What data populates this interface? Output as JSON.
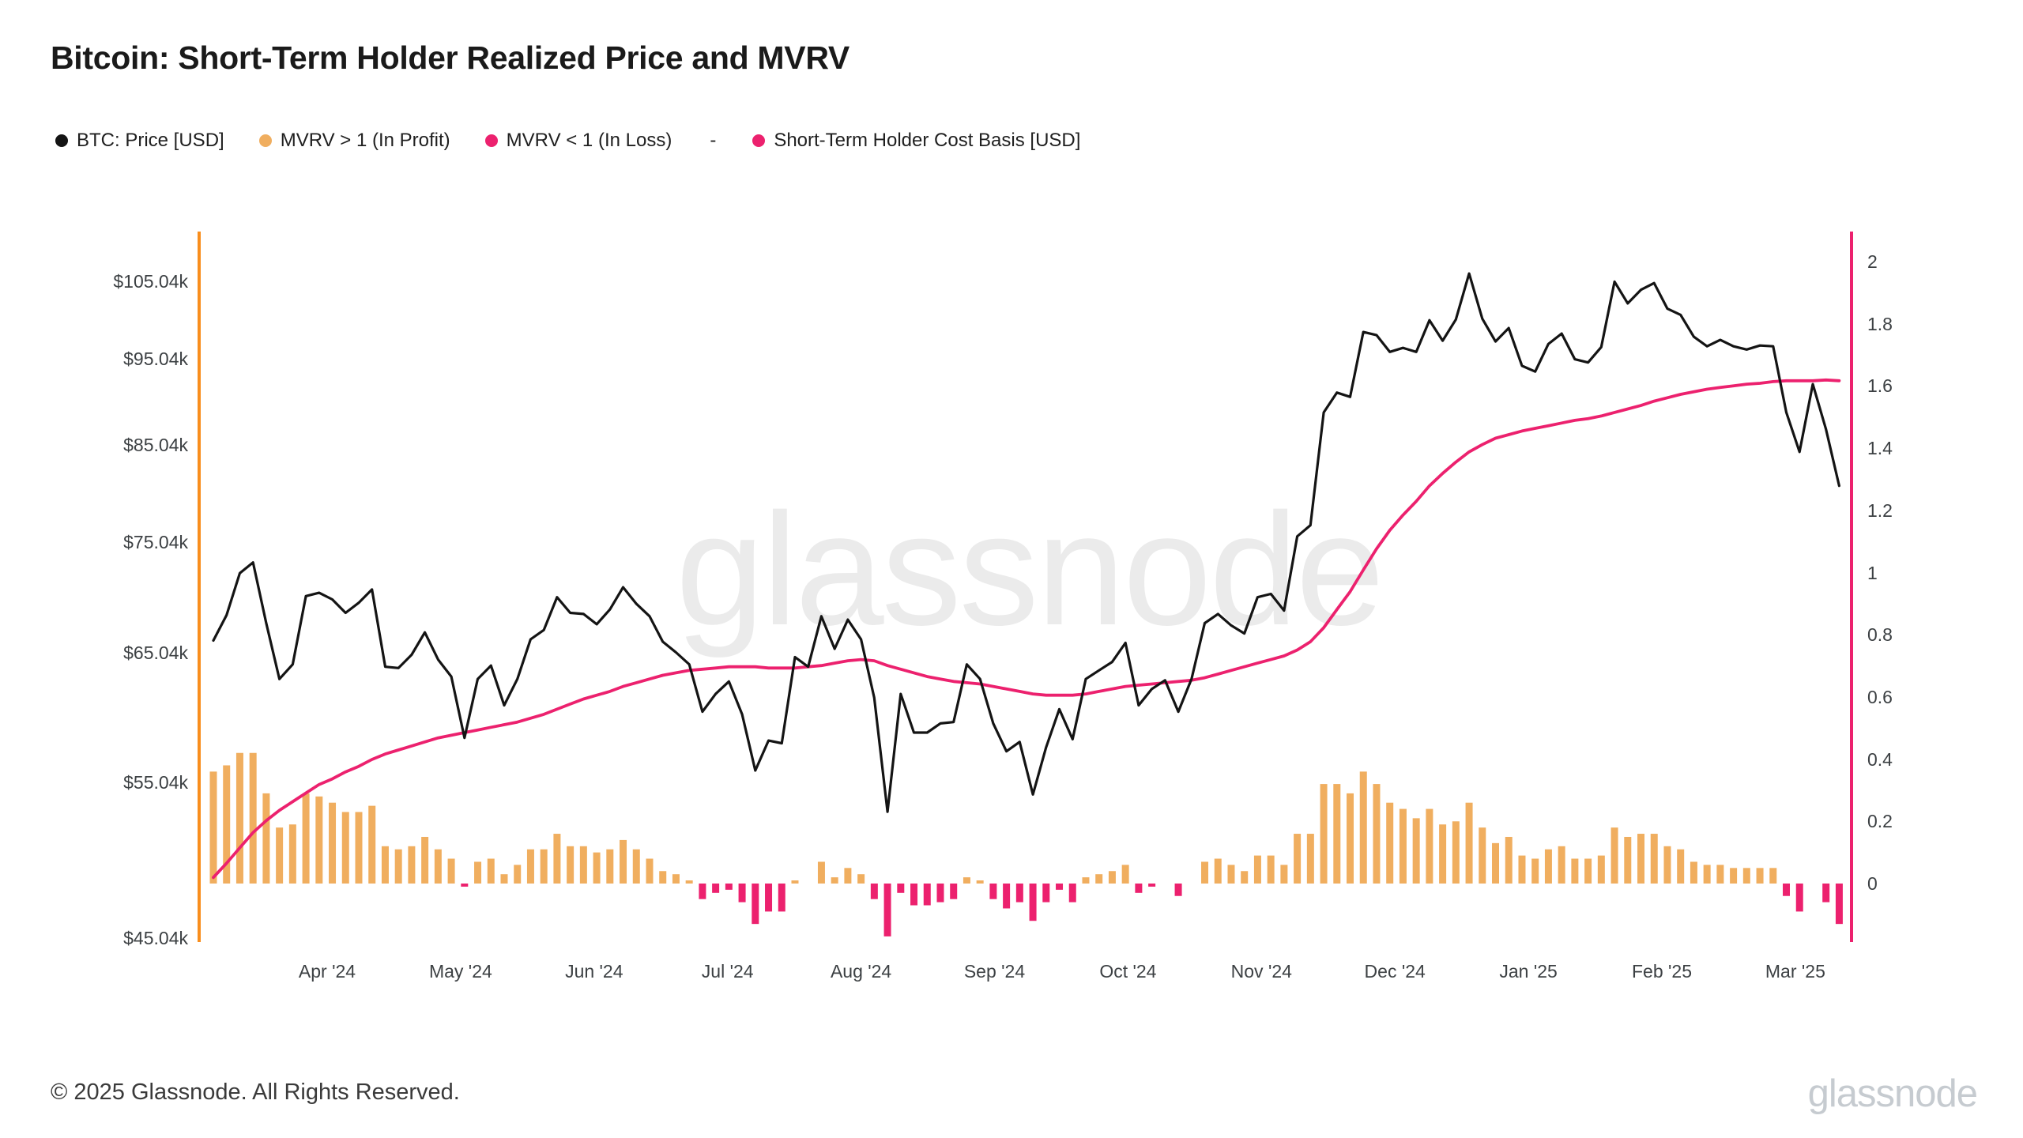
{
  "title": "Bitcoin: Short-Term Holder Realized Price and MVRV",
  "watermark": "glassnode",
  "footer": {
    "copyright": "© 2025 Glassnode. All Rights Reserved.",
    "brand": "glassnode"
  },
  "legend": [
    {
      "label": "BTC: Price [USD]",
      "color": "#141414"
    },
    {
      "label": "MVRV > 1 (In Profit)",
      "color": "#f0ae5f"
    },
    {
      "label": "MVRV < 1 (In Loss)",
      "color": "#ec216e"
    },
    {
      "label": "-",
      "color": null
    },
    {
      "label": "Short-Term Holder Cost Basis [USD]",
      "color": "#ec216e"
    }
  ],
  "chart_data": {
    "type": "line+bar",
    "title": "Bitcoin: Short-Term Holder Realized Price and MVRV",
    "x_start": "2024-03-05",
    "x_step_days": 3,
    "x_tick_labels": [
      "Apr '24",
      "May '24",
      "Jun '24",
      "Jul '24",
      "Aug '24",
      "Sep '24",
      "Oct '24",
      "Nov '24",
      "Dec '24",
      "Jan '25",
      "Feb '25",
      "Mar '25"
    ],
    "y_left": {
      "unit": "USD",
      "scale": "log",
      "tick_labels": [
        "$105.04k",
        "$95.04k",
        "$85.04k",
        "$75.04k",
        "$65.04k",
        "$55.04k",
        "$45.04k"
      ],
      "tick_values_k": [
        105.04,
        95.04,
        85.04,
        75.04,
        65.04,
        55.04,
        45.04
      ],
      "axis_color": "#f98e1d"
    },
    "y_right": {
      "unit": "ratio",
      "scale": "linear",
      "tick_labels": [
        "2",
        "1.8",
        "1.6",
        "1.4",
        "1.2",
        "1",
        "0.8",
        "0.6",
        "0.4",
        "0.2",
        "0"
      ],
      "tick_values": [
        2,
        1.8,
        1.6,
        1.4,
        1.2,
        1,
        0.8,
        0.6,
        0.4,
        0.2,
        0
      ],
      "axis_color": "#ec216e"
    },
    "series": [
      {
        "name": "BTC: Price [USD]",
        "type": "line",
        "axis": "left",
        "unit": "kUSD",
        "color": "#141414",
        "values": [
          66.1,
          68.3,
          72.1,
          73.1,
          67.6,
          62.9,
          64.1,
          70.0,
          70.3,
          69.7,
          68.5,
          69.4,
          70.6,
          63.9,
          63.8,
          64.9,
          66.8,
          64.5,
          63.1,
          58.3,
          62.9,
          64.0,
          60.8,
          62.9,
          66.2,
          67.0,
          69.9,
          68.5,
          68.4,
          67.5,
          68.8,
          70.8,
          69.3,
          68.2,
          66.0,
          65.1,
          64.1,
          60.3,
          61.7,
          62.7,
          60.1,
          55.9,
          58.1,
          57.9,
          64.7,
          63.9,
          68.2,
          65.4,
          67.9,
          66.2,
          61.4,
          53.0,
          61.7,
          58.7,
          58.7,
          59.4,
          59.5,
          64.1,
          62.9,
          59.4,
          57.3,
          58.0,
          54.2,
          57.6,
          60.5,
          58.2,
          62.9,
          63.6,
          64.3,
          65.9,
          60.8,
          62.1,
          62.8,
          60.3,
          62.9,
          67.6,
          68.4,
          67.4,
          66.7,
          69.9,
          70.2,
          68.7,
          75.6,
          76.7,
          88.7,
          91.0,
          90.5,
          98.4,
          98.0,
          95.9,
          96.4,
          95.9,
          99.9,
          97.3,
          100.0,
          106.1,
          100.1,
          97.2,
          98.9,
          94.2,
          93.5,
          96.9,
          98.2,
          95.0,
          94.6,
          96.5,
          105.0,
          102.1,
          103.9,
          104.8,
          101.4,
          100.6,
          97.8,
          96.6,
          97.4,
          96.6,
          96.2,
          96.7,
          96.6,
          88.7,
          84.3,
          92.0,
          86.8,
          80.7
        ]
      },
      {
        "name": "Short-Term Holder Cost Basis [USD]",
        "type": "line",
        "axis": "left",
        "unit": "kUSD",
        "color": "#ec216e",
        "values": [
          48.7,
          49.6,
          50.6,
          51.6,
          52.4,
          53.1,
          53.7,
          54.3,
          54.9,
          55.3,
          55.8,
          56.2,
          56.7,
          57.1,
          57.4,
          57.7,
          58.0,
          58.3,
          58.5,
          58.7,
          58.9,
          59.1,
          59.3,
          59.5,
          59.8,
          60.1,
          60.5,
          60.9,
          61.3,
          61.6,
          61.9,
          62.3,
          62.6,
          62.9,
          63.2,
          63.4,
          63.6,
          63.7,
          63.8,
          63.9,
          63.9,
          63.9,
          63.8,
          63.8,
          63.8,
          63.9,
          64.0,
          64.2,
          64.4,
          64.5,
          64.4,
          64.0,
          63.7,
          63.4,
          63.1,
          62.9,
          62.7,
          62.6,
          62.5,
          62.3,
          62.1,
          61.9,
          61.7,
          61.6,
          61.6,
          61.6,
          61.7,
          61.9,
          62.1,
          62.3,
          62.4,
          62.5,
          62.6,
          62.7,
          62.8,
          63.0,
          63.3,
          63.6,
          63.9,
          64.2,
          64.5,
          64.8,
          65.3,
          66.0,
          67.2,
          68.8,
          70.4,
          72.4,
          74.4,
          76.2,
          77.7,
          79.1,
          80.7,
          82.0,
          83.2,
          84.3,
          85.1,
          85.8,
          86.2,
          86.6,
          86.9,
          87.2,
          87.5,
          87.8,
          88.0,
          88.3,
          88.7,
          89.1,
          89.5,
          90.0,
          90.4,
          90.8,
          91.1,
          91.4,
          91.6,
          91.8,
          92.0,
          92.1,
          92.3,
          92.4,
          92.4,
          92.4,
          92.5,
          92.4
        ]
      },
      {
        "name": "STH MVRV (bars, deviation from 1)",
        "type": "bar",
        "axis": "right",
        "baseline": 1,
        "color_profit": "#f0ae5f",
        "color_loss": "#ec216e",
        "values": [
          1.36,
          1.38,
          1.42,
          1.42,
          1.29,
          1.18,
          1.19,
          1.29,
          1.28,
          1.26,
          1.23,
          1.23,
          1.25,
          1.12,
          1.11,
          1.12,
          1.15,
          1.11,
          1.08,
          0.99,
          1.07,
          1.08,
          1.03,
          1.06,
          1.11,
          1.11,
          1.16,
          1.12,
          1.12,
          1.1,
          1.11,
          1.14,
          1.11,
          1.08,
          1.04,
          1.03,
          1.01,
          0.95,
          0.97,
          0.98,
          0.94,
          0.87,
          0.91,
          0.91,
          1.01,
          1.0,
          1.07,
          1.02,
          1.05,
          1.03,
          0.95,
          0.83,
          0.97,
          0.93,
          0.93,
          0.94,
          0.95,
          1.02,
          1.01,
          0.95,
          0.92,
          0.94,
          0.88,
          0.94,
          0.98,
          0.94,
          1.02,
          1.03,
          1.04,
          1.06,
          0.97,
          0.99,
          1.0,
          0.96,
          1.0,
          1.07,
          1.08,
          1.06,
          1.04,
          1.09,
          1.09,
          1.06,
          1.16,
          1.16,
          1.32,
          1.32,
          1.29,
          1.36,
          1.32,
          1.26,
          1.24,
          1.21,
          1.24,
          1.19,
          1.2,
          1.26,
          1.18,
          1.13,
          1.15,
          1.09,
          1.08,
          1.11,
          1.12,
          1.08,
          1.08,
          1.09,
          1.18,
          1.15,
          1.16,
          1.16,
          1.12,
          1.11,
          1.07,
          1.06,
          1.06,
          1.05,
          1.05,
          1.05,
          1.05,
          0.96,
          0.91,
          1.0,
          0.94,
          0.87
        ]
      }
    ]
  }
}
